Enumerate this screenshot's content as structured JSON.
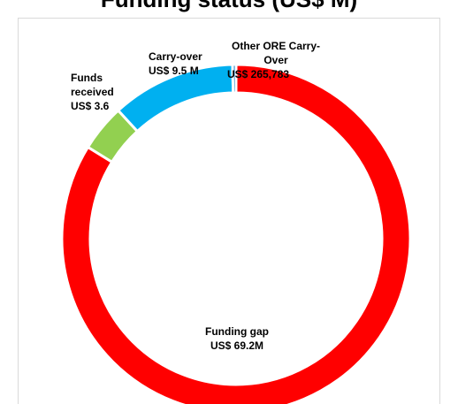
{
  "chart_data": {
    "type": "pie",
    "variant": "donut",
    "title": "Funding status (US$ M)",
    "categories": [
      "Funding gap",
      "Funds received",
      "Carry-over",
      "Other ORE Carry-Over"
    ],
    "values": [
      69.2,
      3.6,
      9.5,
      0.265783
    ],
    "units": "US$ M",
    "colors": [
      "#ff0000",
      "#92d050",
      "#00b0f0",
      "#0070c0"
    ],
    "labels": [
      {
        "lines": [
          "Funding gap",
          "US$ 69.2M"
        ]
      },
      {
        "lines": [
          "Funds",
          "received",
          "US$ 3.6"
        ]
      },
      {
        "lines": [
          "Carry-over",
          "US$ 9.5 M"
        ]
      },
      {
        "lines": [
          "Other ORE Carry-",
          "Over",
          "US$ 265,783"
        ]
      }
    ],
    "legend": "none"
  }
}
